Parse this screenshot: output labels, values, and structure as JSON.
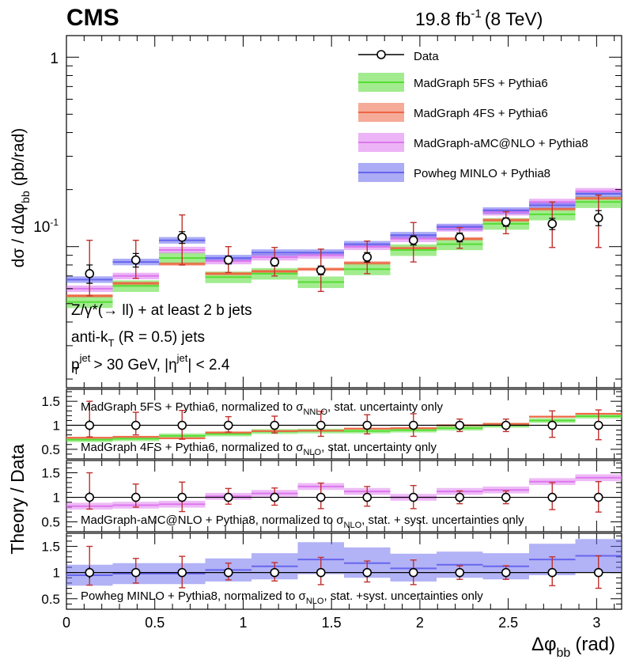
{
  "header": {
    "experiment": "CMS",
    "lumi": "19.8 fb",
    "lumi_exp": "-1",
    "energy": "(8 TeV)"
  },
  "colors": {
    "data": "#000000",
    "error_bar": "#c0302e",
    "mg5": "#55dd33",
    "mg4": "#ee6644",
    "amc": "#dd77ee",
    "powheg": "#6666ee"
  },
  "chart_data": {
    "type": "line",
    "title": "",
    "xlabel": "Δφ",
    "xlabel_sub": "bb",
    "xlabel_unit": "(rad)",
    "xlim": [
      0,
      3.1416
    ],
    "xticks": [
      0,
      0.5,
      1,
      1.5,
      2,
      2.5,
      3
    ],
    "xtick_labels": [
      "0",
      "0.5",
      "1",
      "1.5",
      "2",
      "2.5",
      "3"
    ],
    "bin_edges": [
      0,
      0.2618,
      0.5236,
      0.7854,
      1.0472,
      1.309,
      1.5708,
      1.8326,
      2.0944,
      2.3562,
      2.618,
      2.8798,
      3.1416
    ],
    "main": {
      "ylabel": "dσ / dΔφ",
      "ylabel_sub": "bb",
      "ylabel_unit": "(pb/rad)",
      "yscale": "log",
      "ylim": [
        0.018,
        1.3
      ],
      "ytick_labels": {
        "one": "1",
        "tenth_base": "10",
        "tenth_exp": "-1"
      },
      "data": {
        "name": "Data",
        "values": [
          0.072,
          0.085,
          0.112,
          0.085,
          0.083,
          0.075,
          0.088,
          0.108,
          0.112,
          0.135,
          0.132,
          0.142
        ],
        "err_total_lo": [
          0.017,
          0.017,
          0.032,
          0.012,
          0.013,
          0.017,
          0.016,
          0.025,
          0.014,
          0.018,
          0.033,
          0.043
        ],
        "err_total_hi": [
          0.036,
          0.023,
          0.035,
          0.015,
          0.016,
          0.022,
          0.019,
          0.026,
          0.014,
          0.018,
          0.04,
          0.045
        ],
        "err_stat": [
          0.008,
          0.007,
          0.008,
          0.004,
          0.004,
          0.004,
          0.005,
          0.006,
          0.006,
          0.007,
          0.009,
          0.013
        ]
      },
      "series": [
        {
          "name": "MadGraph 5FS + Pythia6",
          "key": "mg5",
          "values": [
            0.051,
            0.062,
            0.087,
            0.069,
            0.072,
            0.065,
            0.076,
            0.096,
            0.103,
            0.132,
            0.148,
            0.172
          ],
          "band_frac": 0.07
        },
        {
          "name": "MadGraph 4FS + Pythia6",
          "key": "mg4",
          "values": [
            0.055,
            0.064,
            0.081,
            0.072,
            0.074,
            0.076,
            0.082,
            0.098,
            0.11,
            0.138,
            0.158,
            0.18
          ],
          "band_frac": 0.02
        },
        {
          "name": "MadGraph-aMC@NLO + Pythia8",
          "key": "amc",
          "values": [
            0.06,
            0.07,
            0.096,
            0.084,
            0.088,
            0.09,
            0.1,
            0.11,
            0.125,
            0.152,
            0.172,
            0.196
          ],
          "band_frac": 0.04
        },
        {
          "name": "Powheg MINLO + Pythia8",
          "key": "powheg",
          "values": [
            0.067,
            0.083,
            0.108,
            0.087,
            0.093,
            0.093,
            0.103,
            0.115,
            0.127,
            0.155,
            0.165,
            0.19
          ],
          "band_frac": 0.04
        }
      ]
    },
    "annotations": {
      "process": "Z/γ*(→ ll) + at least 2 b jets",
      "algo_pre": "anti-k",
      "algo_sub": "T",
      "algo_post": " (R = 0.5) jets",
      "cut_p": "p",
      "cut_p_sub": "T",
      "cut_p_sup": "jet",
      "cut_mid": " > 30 GeV, |η",
      "cut_eta_sup": "jet",
      "cut_end": "| < 2.4"
    },
    "ratio": {
      "ylabel": "Theory / Data",
      "ylim": [
        0.3,
        1.75
      ],
      "yticks": [
        0.5,
        1,
        1.5
      ],
      "ytick_labels": [
        "0.5",
        "1",
        "1.5"
      ],
      "data_err_lo": [
        0.24,
        0.2,
        0.29,
        0.14,
        0.16,
        0.23,
        0.18,
        0.23,
        0.13,
        0.13,
        0.25,
        0.3
      ],
      "data_err_hi": [
        0.5,
        0.27,
        0.31,
        0.18,
        0.19,
        0.29,
        0.22,
        0.24,
        0.13,
        0.13,
        0.3,
        0.32
      ],
      "data_stat": [
        0.11,
        0.08,
        0.07,
        0.05,
        0.05,
        0.05,
        0.06,
        0.06,
        0.05,
        0.05,
        0.07,
        0.09
      ],
      "panels": [
        {
          "series": [
            {
              "key": "mg5",
              "values": [
                0.7,
                0.72,
                0.78,
                0.82,
                0.87,
                0.88,
                0.88,
                0.9,
                0.94,
                1.0,
                1.1,
                1.19
              ],
              "band": 0.05
            },
            {
              "key": "mg4",
              "values": [
                0.74,
                0.76,
                0.73,
                0.85,
                0.88,
                0.89,
                0.93,
                0.94,
                1.0,
                1.03,
                1.18,
                1.24
              ],
              "band": 0.02
            }
          ],
          "labels": [
            {
              "pre": "MadGraph 5FS + Pythia6, normalized to σ",
              "sub": "NNLO",
              "post": ", stat. uncertainty only"
            },
            {
              "pre": "MadGraph 4FS + Pythia6, normalized to σ",
              "sub": "NLO",
              "post": ", stat. uncertainty only"
            }
          ]
        },
        {
          "series": [
            {
              "key": "amc",
              "values": [
                0.82,
                0.84,
                0.86,
                1.02,
                1.08,
                1.22,
                1.12,
                1.0,
                1.12,
                1.15,
                1.32,
                1.4
              ],
              "band": 0.07
            }
          ],
          "labels": [
            {
              "pre": "MadGraph-aMC@NLO + Pythia8, normalized to σ",
              "sub": "NLO",
              "post": ", stat. + syst. uncertainties only"
            }
          ]
        },
        {
          "series": [
            {
              "key": "powheg",
              "values": [
                0.95,
                0.98,
                0.98,
                1.05,
                1.12,
                1.25,
                1.18,
                1.08,
                1.15,
                1.12,
                1.25,
                1.32
              ],
              "band_lo": [
                0.2,
                0.2,
                0.2,
                0.22,
                0.25,
                0.28,
                0.28,
                0.25,
                0.25,
                0.25,
                0.3,
                0.32
              ],
              "band_hi": [
                0.2,
                0.2,
                0.2,
                0.22,
                0.25,
                0.33,
                0.3,
                0.28,
                0.25,
                0.25,
                0.3,
                0.32
              ]
            }
          ],
          "labels": [
            {
              "pre": "Powheg MINLO + Pythia8, normalized to σ",
              "sub": "NLO",
              "post": ", stat. +syst. uncertainties only"
            }
          ]
        }
      ]
    }
  }
}
